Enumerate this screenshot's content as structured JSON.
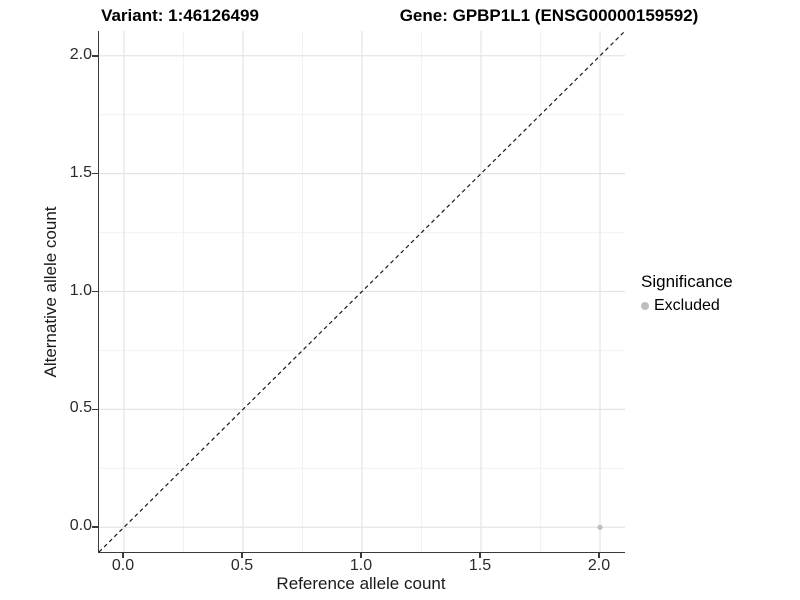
{
  "colors": {
    "background": "#ffffff",
    "grid_major": "#e4e4e4",
    "grid_minor": "#f2f2f2",
    "axis_line": "#3a3a3a",
    "tick_mark": "#3a3a3a",
    "tick_text": "#2b2b2b",
    "title_text": "#000000",
    "reference_line": "#1a1a1a",
    "point_grey": "#bebebe"
  },
  "chart_data": {
    "type": "scatter",
    "title_left": "Variant: 1:46126499",
    "title_right": "Gene: GPBP1L1 (ENSG00000159592)",
    "xlabel": "Reference allele count",
    "ylabel": "Alternative allele count",
    "xlim": [
      -0.105,
      2.105
    ],
    "ylim": [
      -0.105,
      2.105
    ],
    "x_ticks": [
      {
        "v": 0.0,
        "label": "0.0"
      },
      {
        "v": 0.5,
        "label": "0.5"
      },
      {
        "v": 1.0,
        "label": "1.0"
      },
      {
        "v": 1.5,
        "label": "1.5"
      },
      {
        "v": 2.0,
        "label": "2.0"
      }
    ],
    "y_ticks": [
      {
        "v": 0.0,
        "label": "0.0"
      },
      {
        "v": 0.5,
        "label": "0.5"
      },
      {
        "v": 1.0,
        "label": "1.0"
      },
      {
        "v": 1.5,
        "label": "1.5"
      },
      {
        "v": 2.0,
        "label": "2.0"
      }
    ],
    "x_minor_breaks": [
      0.25,
      0.75,
      1.25,
      1.75
    ],
    "y_minor_breaks": [
      0.25,
      0.75,
      1.25,
      1.75
    ],
    "grid": "major+minor",
    "reference_line": {
      "slope": 1,
      "intercept": 0,
      "style": "dashed"
    },
    "series": [
      {
        "name": "Excluded",
        "color": "#bebebe",
        "points": [
          {
            "x": 2.0,
            "y": 0.0
          }
        ]
      }
    ],
    "legend": {
      "title": "Significance",
      "position": "right",
      "entries": [
        {
          "label": "Excluded",
          "color": "#bebebe"
        }
      ]
    }
  }
}
